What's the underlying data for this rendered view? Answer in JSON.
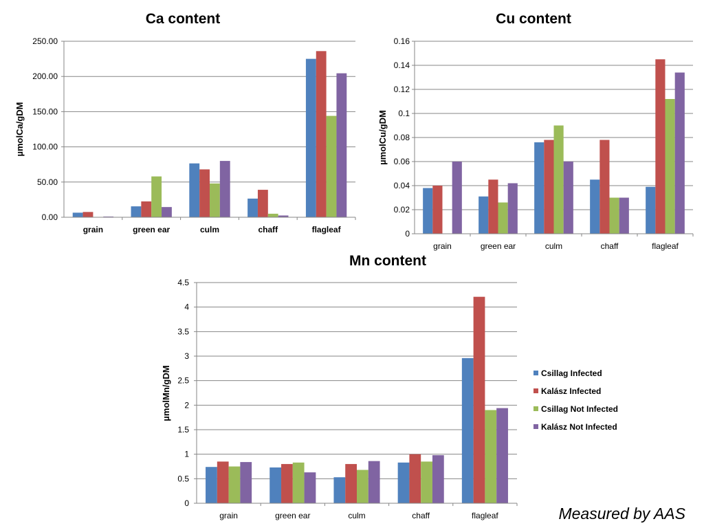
{
  "series_colors": [
    "#4f81bd",
    "#c0504d",
    "#9bbb59",
    "#8064a2"
  ],
  "legend": {
    "items": [
      "Csillag Infected",
      "Kalász Infected",
      "Csillag Not Infected",
      "Kalász Not Infected"
    ]
  },
  "footer_note": "Measured  by AAS",
  "chart_data": [
    {
      "type": "bar",
      "title": "Ca content",
      "ylabel": "µmolCa/gDM",
      "xlabel": "",
      "ylim": [
        0,
        250
      ],
      "yticks": [
        0,
        50,
        100,
        150,
        200,
        250
      ],
      "ytick_labels": [
        "0.00",
        "50.00",
        "100.00",
        "150.00",
        "200.00",
        "250.00"
      ],
      "categories": [
        "grain",
        "green ear",
        "culm",
        "chaff",
        "flagleaf"
      ],
      "grid": true,
      "series": [
        {
          "name": "Csillag Infected",
          "values": [
            6.5,
            15.5,
            76.5,
            26.5,
            225
          ]
        },
        {
          "name": "Kalász Infected",
          "values": [
            7.5,
            22.5,
            68,
            39,
            236
          ]
        },
        {
          "name": "Csillag Not Infected",
          "values": [
            0.5,
            58,
            48,
            5,
            144
          ]
        },
        {
          "name": "Kalász Not Infected",
          "values": [
            1,
            14.5,
            80,
            2.5,
            204.5
          ]
        }
      ]
    },
    {
      "type": "bar",
      "title": "Cu content",
      "ylabel": "µmolCu/gDM",
      "xlabel": "",
      "ylim": [
        0,
        0.16
      ],
      "yticks": [
        0,
        0.02,
        0.04,
        0.06,
        0.08,
        0.1,
        0.12,
        0.14,
        0.16
      ],
      "ytick_labels": [
        "0",
        "0.02",
        "0.04",
        "0.06",
        "0.08",
        "0.1",
        "0.12",
        "0.14",
        "0.16"
      ],
      "categories": [
        "grain",
        "green ear",
        "culm",
        "chaff",
        "flagleaf"
      ],
      "grid": true,
      "series": [
        {
          "name": "Csillag Infected",
          "values": [
            0.038,
            0.031,
            0.076,
            0.045,
            0.039
          ]
        },
        {
          "name": "Kalász Infected",
          "values": [
            0.04,
            0.045,
            0.078,
            0.078,
            0.145
          ]
        },
        {
          "name": "Csillag Not Infected",
          "values": [
            0,
            0.026,
            0.09,
            0.03,
            0.112
          ]
        },
        {
          "name": "Kalász Not Infected",
          "values": [
            0.06,
            0.042,
            0.06,
            0.03,
            0.134
          ]
        }
      ]
    },
    {
      "type": "bar",
      "title": "Mn content",
      "ylabel": "µmolMn/gDM",
      "xlabel": "",
      "ylim": [
        0,
        4.5
      ],
      "yticks": [
        0,
        0.5,
        1,
        1.5,
        2,
        2.5,
        3,
        3.5,
        4,
        4.5
      ],
      "ytick_labels": [
        "0",
        "0.5",
        "1",
        "1.5",
        "2",
        "2.5",
        "3",
        "3.5",
        "4",
        "4.5"
      ],
      "categories": [
        "grain",
        "green ear",
        "culm",
        "chaff",
        "flagleaf"
      ],
      "grid": true,
      "legend_position": "right",
      "series": [
        {
          "name": "Csillag Infected",
          "values": [
            0.74,
            0.73,
            0.53,
            0.83,
            2.96
          ]
        },
        {
          "name": "Kalász Infected",
          "values": [
            0.85,
            0.8,
            0.8,
            1.0,
            4.21
          ]
        },
        {
          "name": "Csillag Not Infected",
          "values": [
            0.75,
            0.83,
            0.68,
            0.85,
            1.9
          ]
        },
        {
          "name": "Kalász Not Infected",
          "values": [
            0.84,
            0.63,
            0.86,
            0.98,
            1.94
          ]
        }
      ]
    }
  ]
}
